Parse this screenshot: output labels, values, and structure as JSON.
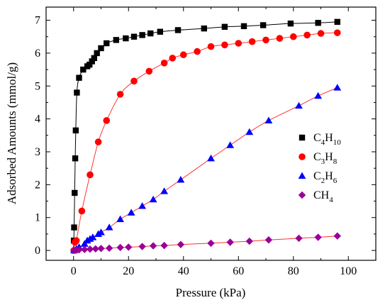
{
  "chart_data": {
    "type": "scatter",
    "xlabel": "Pressure (kPa)",
    "ylabel": "Adsorbed Amounts (mmol/g)",
    "xlim": [
      -10,
      110
    ],
    "ylim": [
      -0.3,
      7.4
    ],
    "xticks": [
      0,
      20,
      40,
      60,
      80,
      100
    ],
    "yticks": [
      0,
      1,
      2,
      3,
      4,
      5,
      6,
      7
    ],
    "grid": false,
    "legend_position": "right",
    "series": [
      {
        "name": "C4H10",
        "legend_main": "C",
        "legend_parts": [
          [
            "C",
            ""
          ],
          [
            "4",
            "sub"
          ],
          [
            "H",
            ""
          ],
          [
            "10",
            "sub"
          ]
        ],
        "marker": "square",
        "color": "#000000",
        "x": [
          0.1,
          0.2,
          0.4,
          0.6,
          0.8,
          1.2,
          2.0,
          3.5,
          5.0,
          5.8,
          6.7,
          7.5,
          8.5,
          10.0,
          12.0,
          15.5,
          19.0,
          22.0,
          25.0,
          28.0,
          31.5,
          38.0,
          47.5,
          55.0,
          62.0,
          69.0,
          79.0,
          89.0,
          96.0
        ],
        "y": [
          0.3,
          0.7,
          1.75,
          2.8,
          3.65,
          4.8,
          5.25,
          5.5,
          5.6,
          5.65,
          5.75,
          5.85,
          6.0,
          6.15,
          6.3,
          6.4,
          6.45,
          6.5,
          6.55,
          6.6,
          6.65,
          6.7,
          6.75,
          6.8,
          6.82,
          6.85,
          6.9,
          6.92,
          6.95
        ]
      },
      {
        "name": "C3H8",
        "legend_parts": [
          [
            "C",
            ""
          ],
          [
            "3",
            "sub"
          ],
          [
            "H",
            ""
          ],
          [
            "8",
            "sub"
          ]
        ],
        "marker": "circle",
        "color": "#ff0000",
        "x": [
          0.1,
          0.5,
          1.0,
          3.0,
          6.0,
          9.0,
          12.0,
          17.0,
          22.0,
          27.5,
          33.0,
          36.0,
          40.0,
          45.0,
          50.0,
          55.0,
          60.0,
          65.0,
          70.0,
          75.0,
          80.0,
          85.0,
          90.0,
          96.0
        ],
        "y": [
          0.0,
          0.25,
          0.3,
          1.2,
          2.3,
          3.3,
          3.95,
          4.75,
          5.15,
          5.45,
          5.7,
          5.85,
          5.95,
          6.05,
          6.2,
          6.25,
          6.3,
          6.35,
          6.4,
          6.45,
          6.5,
          6.55,
          6.6,
          6.62
        ]
      },
      {
        "name": "C2H6",
        "legend_parts": [
          [
            "C",
            ""
          ],
          [
            "2",
            "sub"
          ],
          [
            "H",
            ""
          ],
          [
            "6",
            "sub"
          ]
        ],
        "marker": "triangle",
        "color": "#0000ff",
        "x": [
          0.2,
          1.0,
          2.0,
          4.0,
          5.0,
          6.0,
          7.0,
          9.0,
          10.0,
          13.0,
          17.0,
          21.0,
          25.0,
          29.0,
          33.0,
          39.0,
          50.0,
          57.0,
          64.0,
          71.0,
          82.0,
          89.0,
          96.0
        ],
        "y": [
          0.0,
          0.05,
          0.1,
          0.2,
          0.3,
          0.35,
          0.4,
          0.5,
          0.55,
          0.7,
          0.95,
          1.15,
          1.35,
          1.55,
          1.8,
          2.15,
          2.8,
          3.2,
          3.6,
          3.95,
          4.4,
          4.7,
          4.95
        ]
      },
      {
        "name": "CH4",
        "legend_parts": [
          [
            "CH",
            ""
          ],
          [
            "4",
            "sub"
          ]
        ],
        "marker": "diamond",
        "color": "#990099",
        "x": [
          0.2,
          1.0,
          2.0,
          4.0,
          6.0,
          8.0,
          10.0,
          13.0,
          17.0,
          20.0,
          25.0,
          29.0,
          33.0,
          39.0,
          50.0,
          57.0,
          64.0,
          71.0,
          82.0,
          89.0,
          96.0
        ],
        "y": [
          0.0,
          0.01,
          0.02,
          0.03,
          0.04,
          0.05,
          0.06,
          0.07,
          0.09,
          0.1,
          0.12,
          0.14,
          0.15,
          0.18,
          0.22,
          0.25,
          0.28,
          0.32,
          0.37,
          0.4,
          0.44
        ]
      }
    ]
  }
}
